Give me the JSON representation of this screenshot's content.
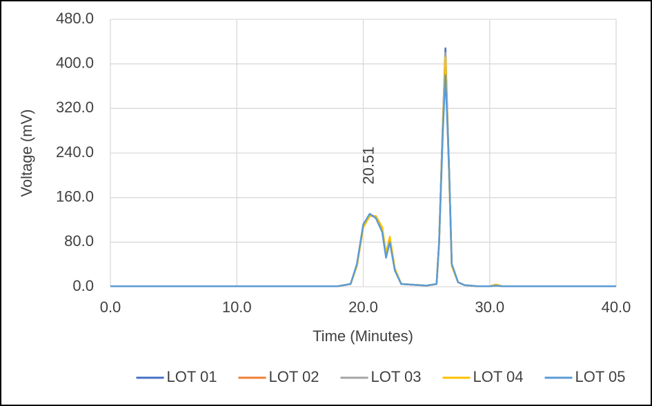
{
  "chart_data": {
    "type": "line",
    "x_label": "Time (Minutes)",
    "y_label": "Voltage (mV)",
    "xlim": [
      0,
      40
    ],
    "ylim": [
      0,
      480
    ],
    "xticks": [
      {
        "value": 0,
        "label": "0.0"
      },
      {
        "value": 10,
        "label": "10.0"
      },
      {
        "value": 20,
        "label": "20.0"
      },
      {
        "value": 30,
        "label": "30.0"
      },
      {
        "value": 40,
        "label": "40.0"
      }
    ],
    "yticks": [
      {
        "value": 0,
        "label": "0.0"
      },
      {
        "value": 80,
        "label": "80.0"
      },
      {
        "value": 160,
        "label": "160.0"
      },
      {
        "value": 240,
        "label": "240.0"
      },
      {
        "value": 320,
        "label": "320.0"
      },
      {
        "value": 400,
        "label": "400.0"
      },
      {
        "value": 480,
        "label": "480.0"
      }
    ],
    "grid": true,
    "legend": "bottom",
    "annotations": [
      {
        "text": "20.51",
        "x": 20.51
      }
    ],
    "x": [
      0,
      5,
      10,
      15,
      18,
      19,
      19.5,
      20,
      20.51,
      21,
      21.5,
      21.8,
      22.1,
      22.5,
      23,
      25,
      25.8,
      26,
      26.3,
      26.5,
      26.8,
      27,
      27.5,
      28,
      29,
      30,
      30.5,
      31,
      35,
      40
    ],
    "series": [
      {
        "name": "LOT 01",
        "color": "#4472c4",
        "values": [
          1,
          1,
          1,
          1,
          1,
          5,
          40,
          110,
          130,
          125,
          100,
          55,
          82,
          30,
          5,
          2,
          5,
          80,
          300,
          428,
          200,
          40,
          8,
          3,
          1,
          1,
          2,
          1,
          1,
          1
        ]
      },
      {
        "name": "LOT 02",
        "color": "#ed7d31",
        "values": [
          1,
          1,
          1,
          1,
          1,
          5,
          38,
          108,
          128,
          126,
          105,
          58,
          86,
          32,
          5,
          2,
          5,
          78,
          295,
          415,
          195,
          38,
          8,
          3,
          1,
          1,
          3,
          1,
          1,
          1
        ]
      },
      {
        "name": "LOT 03",
        "color": "#a5a5a5",
        "values": [
          1,
          1,
          1,
          1,
          1,
          5,
          39,
          109,
          129,
          124,
          102,
          56,
          84,
          31,
          5,
          2,
          5,
          79,
          298,
          420,
          198,
          39,
          8,
          3,
          1,
          1,
          2,
          1,
          1,
          1
        ]
      },
      {
        "name": "LOT 04",
        "color": "#ffc000",
        "values": [
          1,
          1,
          1,
          1,
          1,
          5,
          37,
          106,
          127,
          127,
          107,
          60,
          90,
          33,
          5,
          2,
          5,
          77,
          290,
          412,
          192,
          37,
          8,
          3,
          1,
          1,
          4,
          1,
          1,
          1
        ]
      },
      {
        "name": "LOT 05",
        "color": "#5b9bd5",
        "values": [
          1,
          1,
          1,
          1,
          1,
          5,
          41,
          112,
          131,
          123,
          98,
          52,
          80,
          29,
          5,
          2,
          5,
          81,
          280,
          380,
          205,
          41,
          8,
          3,
          1,
          1,
          2,
          1,
          1,
          1
        ]
      }
    ]
  }
}
